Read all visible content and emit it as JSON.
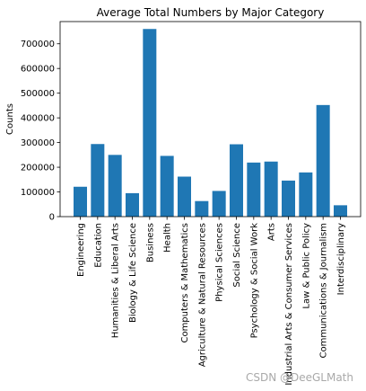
{
  "chart_data": {
    "type": "bar",
    "title": "Average Total Numbers by Major Category",
    "xlabel": "",
    "ylabel": "Counts",
    "ylim": [
      0,
      790000
    ],
    "yticks": [
      0,
      100000,
      200000,
      300000,
      400000,
      500000,
      600000,
      700000
    ],
    "grid": false,
    "bar_color": "#1f77b4",
    "categories": [
      "Engineering",
      "Education",
      "Humanities & Liberal Arts",
      "Biology & Life Science",
      "Business",
      "Health",
      "Computers & Mathematics",
      "Agriculture & Natural Resources",
      "Physical Sciences",
      "Social Science",
      "Psychology & Social Work",
      "Arts",
      "Industrial Arts & Consumer Services",
      "Law & Public Policy",
      "Communications & Journalism",
      "Interdisciplinary"
    ],
    "values": [
      121000,
      294000,
      250000,
      95000,
      760000,
      246000,
      162000,
      63000,
      104000,
      293000,
      219000,
      223000,
      146000,
      179000,
      452000,
      46000
    ]
  },
  "watermark": "CSDN @DeeGLMath"
}
